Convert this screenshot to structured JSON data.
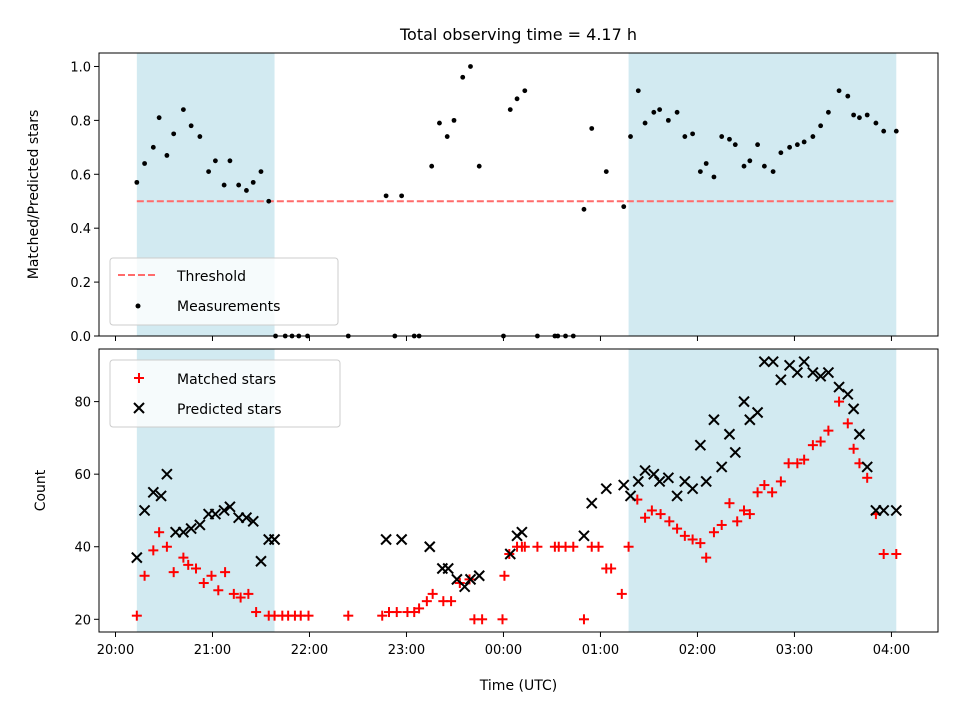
{
  "chart_data": {
    "title": "Total observing time = 4.17 h",
    "xlabel": "Time (UTC)",
    "x_ticks": [
      "20:00",
      "21:00",
      "22:00",
      "23:00",
      "00:00",
      "01:00",
      "02:00",
      "03:00",
      "04:00"
    ],
    "x_tick_hours": [
      20,
      21,
      22,
      23,
      24,
      25,
      26,
      27,
      28
    ],
    "xlim_hours": [
      19.83,
      28.48
    ],
    "shaded_intervals_hours": [
      [
        20.22,
        21.64
      ],
      [
        25.29,
        28.05
      ]
    ],
    "colors": {
      "shade": "#add8e6",
      "threshold": "#ff6b6b",
      "matched": "#ff0000",
      "predicted": "#000000",
      "measure": "#000000"
    },
    "top": {
      "type": "scatter",
      "ylabel": "Matched/Predicted stars",
      "ylim": [
        0,
        1.05
      ],
      "y_ticks": [
        "0.0",
        "0.2",
        "0.4",
        "0.6",
        "0.8",
        "1.0"
      ],
      "y_tick_values": [
        0,
        0.2,
        0.4,
        0.6,
        0.8,
        1.0
      ],
      "threshold": 0.5,
      "threshold_range_hours": [
        20.22,
        28.02
      ],
      "legend": [
        {
          "name": "Threshold",
          "style": "dashed-line"
        },
        {
          "name": "Measurements",
          "style": "dot"
        }
      ],
      "legend_position": "lower-left",
      "x": [
        20.22,
        20.3,
        20.39,
        20.45,
        20.53,
        20.6,
        20.7,
        20.78,
        20.87,
        20.96,
        21.03,
        21.12,
        21.18,
        21.27,
        21.35,
        21.42,
        21.5,
        21.58,
        21.65,
        21.75,
        21.82,
        21.89,
        21.98,
        22.4,
        22.79,
        22.88,
        22.95,
        23.08,
        23.13,
        23.26,
        23.34,
        23.42,
        23.49,
        23.58,
        23.66,
        23.75,
        24.0,
        24.07,
        24.14,
        24.22,
        24.35,
        24.53,
        24.56,
        24.64,
        24.72,
        24.83,
        24.91,
        25.06,
        25.24,
        25.31,
        25.39,
        25.46,
        25.55,
        25.61,
        25.7,
        25.79,
        25.87,
        25.95,
        26.03,
        26.09,
        26.17,
        26.25,
        26.33,
        26.39,
        26.48,
        26.54,
        26.62,
        26.69,
        26.78,
        26.86,
        26.95,
        27.03,
        27.1,
        27.19,
        27.27,
        27.35,
        27.46,
        27.55,
        27.61,
        27.67,
        27.75,
        27.84,
        27.92,
        28.05
      ],
      "y": [
        0.57,
        0.64,
        0.7,
        0.81,
        0.67,
        0.75,
        0.84,
        0.78,
        0.74,
        0.61,
        0.65,
        0.56,
        0.65,
        0.56,
        0.54,
        0.57,
        0.61,
        0.5,
        0.0,
        0.0,
        0.0,
        0.0,
        0.0,
        0.0,
        0.52,
        0.0,
        0.52,
        0.0,
        0.0,
        0.63,
        0.79,
        0.74,
        0.8,
        0.96,
        1.0,
        0.63,
        0.0,
        0.84,
        0.88,
        0.91,
        0.0,
        0.0,
        0.0,
        0.0,
        0.0,
        0.47,
        0.77,
        0.61,
        0.48,
        0.74,
        0.91,
        0.79,
        0.83,
        0.84,
        0.8,
        0.83,
        0.74,
        0.75,
        0.61,
        0.64,
        0.59,
        0.74,
        0.73,
        0.71,
        0.63,
        0.65,
        0.71,
        0.63,
        0.61,
        0.68,
        0.7,
        0.71,
        0.72,
        0.74,
        0.78,
        0.83,
        0.91,
        0.89,
        0.82,
        0.81,
        0.82,
        0.79,
        0.76,
        0.76
      ]
    },
    "bottom": {
      "type": "scatter",
      "ylabel": "Count",
      "ylim": [
        16.5,
        94.5
      ],
      "y_ticks": [
        "20",
        "40",
        "60",
        "80"
      ],
      "y_tick_values": [
        20,
        40,
        60,
        80
      ],
      "legend_position": "upper-left",
      "series": [
        {
          "name": "Matched stars",
          "marker": "plus",
          "x": [
            20.22,
            20.3,
            20.39,
            20.45,
            20.53,
            20.6,
            20.7,
            20.75,
            20.83,
            20.91,
            20.99,
            21.06,
            21.13,
            21.22,
            21.29,
            21.37,
            21.45,
            21.58,
            21.64,
            21.72,
            21.78,
            21.85,
            21.91,
            21.99,
            22.4,
            22.75,
            22.82,
            22.9,
            23.01,
            23.08,
            23.13,
            23.21,
            23.27,
            23.38,
            23.46,
            23.55,
            23.65,
            23.7,
            23.78,
            23.99,
            24.01,
            24.06,
            24.14,
            24.19,
            24.22,
            24.35,
            24.53,
            24.57,
            24.64,
            24.72,
            24.83,
            24.91,
            24.98,
            25.06,
            25.11,
            25.22,
            25.29,
            25.38,
            25.46,
            25.53,
            25.62,
            25.71,
            25.79,
            25.87,
            25.95,
            26.03,
            26.09,
            26.17,
            26.25,
            26.33,
            26.41,
            26.48,
            26.54,
            26.62,
            26.69,
            26.77,
            26.86,
            26.94,
            27.03,
            27.1,
            27.19,
            27.27,
            27.35,
            27.46,
            27.55,
            27.61,
            27.67,
            27.75,
            27.84,
            27.92,
            28.05
          ],
          "y": [
            21,
            32,
            39,
            44,
            40,
            33,
            37,
            35,
            34,
            30,
            32,
            28,
            33,
            27,
            26,
            27,
            22,
            21,
            21,
            21,
            21,
            21,
            21,
            21,
            21,
            21,
            22,
            22,
            22,
            22,
            23,
            25,
            27,
            25,
            25,
            30,
            31,
            20,
            20,
            20,
            32,
            38,
            40,
            40,
            40,
            40,
            40,
            40,
            40,
            40,
            20,
            40,
            40,
            34,
            34,
            27,
            40,
            53,
            48,
            50,
            49,
            47,
            45,
            43,
            42,
            41,
            37,
            44,
            46,
            52,
            47,
            50,
            49,
            55,
            57,
            55,
            58,
            63,
            63,
            64,
            68,
            69,
            72,
            80,
            74,
            67,
            63,
            59,
            49,
            38,
            38
          ]
        },
        {
          "name": "Predicted stars",
          "marker": "x",
          "x": [
            20.22,
            20.3,
            20.39,
            20.47,
            20.53,
            20.62,
            20.7,
            20.78,
            20.87,
            20.96,
            21.03,
            21.12,
            21.18,
            21.27,
            21.35,
            21.42,
            21.5,
            21.58,
            21.64,
            22.79,
            22.95,
            23.24,
            23.37,
            23.43,
            23.52,
            23.6,
            23.66,
            23.75,
            24.07,
            24.14,
            24.19,
            24.83,
            24.91,
            25.06,
            25.24,
            25.31,
            25.39,
            25.46,
            25.55,
            25.61,
            25.7,
            25.79,
            25.87,
            25.95,
            26.03,
            26.09,
            26.17,
            26.25,
            26.33,
            26.39,
            26.48,
            26.54,
            26.62,
            26.69,
            26.78,
            26.86,
            26.95,
            27.03,
            27.1,
            27.19,
            27.27,
            27.35,
            27.46,
            27.55,
            27.61,
            27.67,
            27.75,
            27.84,
            27.92,
            28.05
          ],
          "y": [
            37,
            50,
            55,
            54,
            60,
            44,
            44,
            45,
            46,
            49,
            49,
            50,
            51,
            48,
            48,
            47,
            36,
            42,
            42,
            42,
            42,
            40,
            34,
            34,
            31,
            29,
            31,
            32,
            38,
            43,
            44,
            43,
            52,
            56,
            57,
            54,
            58,
            61,
            60,
            58,
            59,
            54,
            58,
            56,
            68,
            58,
            75,
            62,
            71,
            66,
            80,
            75,
            77,
            91,
            91,
            86,
            90,
            88,
            91,
            88,
            87,
            88,
            84,
            82,
            78,
            71,
            62,
            50,
            50,
            50
          ]
        }
      ]
    }
  }
}
